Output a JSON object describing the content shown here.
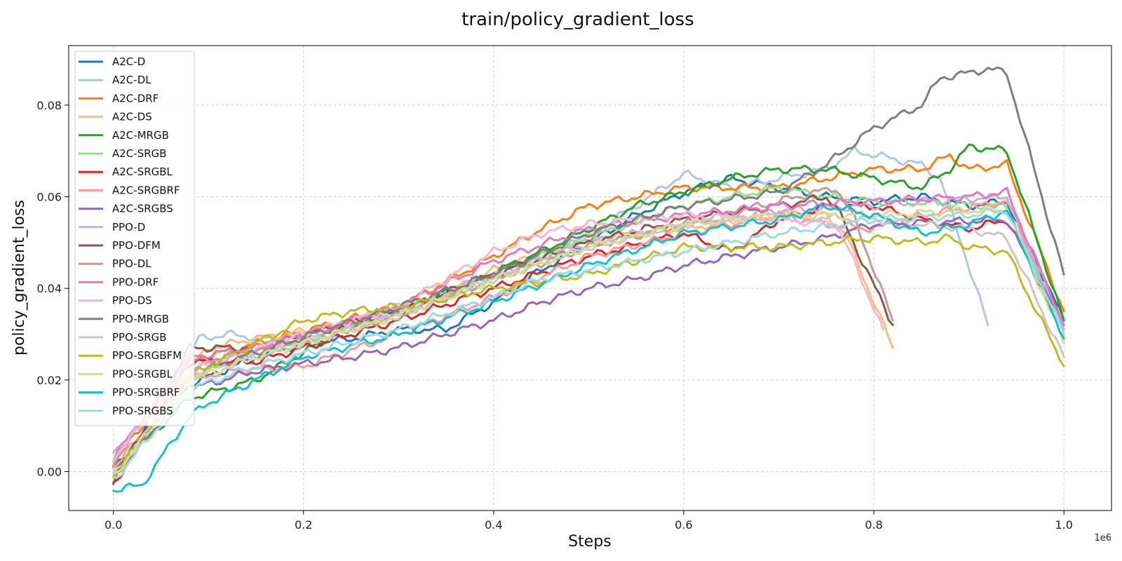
{
  "chart_data": {
    "type": "line",
    "title": "train/policy_gradient_loss",
    "xlabel": "Steps",
    "ylabel": "policy_gradient_loss",
    "x_offset_label": "1e6",
    "xlim": [
      -0.047,
      1.05
    ],
    "ylim": [
      -0.0085,
      0.093
    ],
    "x_ticks": [
      0.0,
      0.2,
      0.4,
      0.6,
      0.8,
      1.0
    ],
    "x_tick_labels": [
      "0.0",
      "0.2",
      "0.4",
      "0.6",
      "0.8",
      "1.0"
    ],
    "y_ticks": [
      0.0,
      0.02,
      0.04,
      0.06,
      0.08
    ],
    "y_tick_labels": [
      "0.00",
      "0.02",
      "0.04",
      "0.06",
      "0.08"
    ],
    "grid": true,
    "legend_position": "top-left",
    "series": [
      {
        "name": "A2C-D",
        "color": "#1f77b4",
        "points": [
          [
            0,
            0.001
          ],
          [
            0.08,
            0.019
          ],
          [
            0.15,
            0.025
          ],
          [
            0.2,
            0.028
          ],
          [
            0.25,
            0.029
          ],
          [
            0.3,
            0.031
          ],
          [
            0.35,
            0.031
          ],
          [
            0.4,
            0.037
          ],
          [
            0.45,
            0.044
          ],
          [
            0.5,
            0.05
          ],
          [
            0.55,
            0.056
          ],
          [
            0.6,
            0.061
          ],
          [
            0.65,
            0.064
          ],
          [
            0.7,
            0.062
          ],
          [
            0.75,
            0.06
          ],
          [
            0.8,
            0.059
          ],
          [
            0.85,
            0.06
          ],
          [
            0.9,
            0.058
          ],
          [
            0.94,
            0.059
          ],
          [
            1.0,
            0.033
          ]
        ]
      },
      {
        "name": "A2C-DL",
        "color": "#aec7e8",
        "points": [
          [
            0,
            0.002
          ],
          [
            0.09,
            0.029
          ],
          [
            0.12,
            0.03
          ],
          [
            0.2,
            0.028
          ],
          [
            0.3,
            0.035
          ],
          [
            0.4,
            0.042
          ],
          [
            0.5,
            0.052
          ],
          [
            0.55,
            0.058
          ],
          [
            0.6,
            0.065
          ],
          [
            0.65,
            0.062
          ],
          [
            0.7,
            0.064
          ],
          [
            0.75,
            0.066
          ],
          [
            0.78,
            0.07
          ],
          [
            0.85,
            0.067
          ],
          [
            0.87,
            0.064
          ],
          [
            0.92,
            0.032
          ]
        ]
      },
      {
        "name": "A2C-DRF",
        "color": "#ff7f0e",
        "points": [
          [
            0,
            0.002
          ],
          [
            0.08,
            0.024
          ],
          [
            0.15,
            0.028
          ],
          [
            0.3,
            0.036
          ],
          [
            0.4,
            0.047
          ],
          [
            0.45,
            0.053
          ],
          [
            0.5,
            0.058
          ],
          [
            0.6,
            0.062
          ],
          [
            0.7,
            0.062
          ],
          [
            0.8,
            0.066
          ],
          [
            0.85,
            0.066
          ],
          [
            0.88,
            0.069
          ],
          [
            0.9,
            0.066
          ],
          [
            0.94,
            0.067
          ],
          [
            1.0,
            0.035
          ]
        ]
      },
      {
        "name": "A2C-DS",
        "color": "#ffbb78",
        "points": [
          [
            0,
            0.003
          ],
          [
            0.1,
            0.027
          ],
          [
            0.15,
            0.029
          ],
          [
            0.3,
            0.034
          ],
          [
            0.4,
            0.044
          ],
          [
            0.5,
            0.051
          ],
          [
            0.6,
            0.053
          ],
          [
            0.7,
            0.056
          ],
          [
            0.75,
            0.056
          ],
          [
            0.77,
            0.052
          ],
          [
            0.82,
            0.027
          ]
        ]
      },
      {
        "name": "A2C-MRGB",
        "color": "#2ca02c",
        "points": [
          [
            0,
            0.0
          ],
          [
            0.08,
            0.016
          ],
          [
            0.15,
            0.02
          ],
          [
            0.25,
            0.032
          ],
          [
            0.3,
            0.036
          ],
          [
            0.35,
            0.039
          ],
          [
            0.45,
            0.048
          ],
          [
            0.55,
            0.058
          ],
          [
            0.6,
            0.061
          ],
          [
            0.65,
            0.064
          ],
          [
            0.7,
            0.066
          ],
          [
            0.75,
            0.066
          ],
          [
            0.8,
            0.064
          ],
          [
            0.85,
            0.062
          ],
          [
            0.88,
            0.066
          ],
          [
            0.9,
            0.071
          ],
          [
            0.94,
            0.07
          ],
          [
            1.0,
            0.033
          ]
        ]
      },
      {
        "name": "A2C-SRGB",
        "color": "#98df8a",
        "points": [
          [
            0,
            -0.001
          ],
          [
            0.08,
            0.02
          ],
          [
            0.15,
            0.026
          ],
          [
            0.3,
            0.034
          ],
          [
            0.4,
            0.043
          ],
          [
            0.5,
            0.051
          ],
          [
            0.6,
            0.058
          ],
          [
            0.65,
            0.06
          ],
          [
            0.7,
            0.062
          ],
          [
            0.75,
            0.06
          ],
          [
            0.8,
            0.059
          ],
          [
            0.94,
            0.058
          ],
          [
            1.0,
            0.03
          ]
        ]
      },
      {
        "name": "A2C-SRGBL",
        "color": "#d62728",
        "points": [
          [
            0,
            -0.003
          ],
          [
            0.08,
            0.024
          ],
          [
            0.15,
            0.024
          ],
          [
            0.3,
            0.033
          ],
          [
            0.4,
            0.04
          ],
          [
            0.5,
            0.047
          ],
          [
            0.6,
            0.052
          ],
          [
            0.65,
            0.048
          ],
          [
            0.7,
            0.055
          ],
          [
            0.75,
            0.058
          ],
          [
            0.8,
            0.058
          ],
          [
            0.85,
            0.055
          ],
          [
            0.9,
            0.053
          ],
          [
            0.94,
            0.055
          ],
          [
            1.0,
            0.031
          ]
        ]
      },
      {
        "name": "A2C-SRGBRF",
        "color": "#ff9896",
        "points": [
          [
            0,
            0.001
          ],
          [
            0.08,
            0.02
          ],
          [
            0.12,
            0.022
          ],
          [
            0.2,
            0.023
          ],
          [
            0.3,
            0.03
          ],
          [
            0.4,
            0.038
          ],
          [
            0.5,
            0.047
          ],
          [
            0.6,
            0.052
          ],
          [
            0.7,
            0.056
          ],
          [
            0.75,
            0.054
          ],
          [
            0.8,
            0.053
          ],
          [
            0.85,
            0.056
          ],
          [
            0.94,
            0.059
          ],
          [
            1.0,
            0.032
          ]
        ]
      },
      {
        "name": "A2C-SRGBS",
        "color": "#9467bd",
        "points": [
          [
            0,
            -0.001
          ],
          [
            0.08,
            0.018
          ],
          [
            0.15,
            0.022
          ],
          [
            0.25,
            0.025
          ],
          [
            0.3,
            0.027
          ],
          [
            0.35,
            0.03
          ],
          [
            0.4,
            0.033
          ],
          [
            0.45,
            0.037
          ],
          [
            0.5,
            0.04
          ],
          [
            0.55,
            0.042
          ],
          [
            0.6,
            0.045
          ],
          [
            0.65,
            0.047
          ],
          [
            0.7,
            0.049
          ],
          [
            0.75,
            0.051
          ],
          [
            0.8,
            0.054
          ],
          [
            0.94,
            0.055
          ],
          [
            1.0,
            0.032
          ]
        ]
      },
      {
        "name": "PPO-D",
        "color": "#c5b0d5",
        "points": [
          [
            0,
            0.004
          ],
          [
            0.08,
            0.022
          ],
          [
            0.15,
            0.027
          ],
          [
            0.3,
            0.035
          ],
          [
            0.4,
            0.043
          ],
          [
            0.5,
            0.05
          ],
          [
            0.6,
            0.054
          ],
          [
            0.7,
            0.057
          ],
          [
            0.8,
            0.058
          ],
          [
            0.85,
            0.059
          ],
          [
            0.94,
            0.06
          ],
          [
            1.0,
            0.031
          ]
        ]
      },
      {
        "name": "PPO-DFM",
        "color": "#8c564b",
        "points": [
          [
            0,
            -0.002
          ],
          [
            0.08,
            0.027
          ],
          [
            0.15,
            0.027
          ],
          [
            0.3,
            0.035
          ],
          [
            0.4,
            0.043
          ],
          [
            0.5,
            0.05
          ],
          [
            0.6,
            0.055
          ],
          [
            0.7,
            0.058
          ],
          [
            0.75,
            0.06
          ],
          [
            0.76,
            0.058
          ],
          [
            0.82,
            0.032
          ]
        ]
      },
      {
        "name": "PPO-DL",
        "color": "#c49c94",
        "points": [
          [
            0,
            0.002
          ],
          [
            0.08,
            0.024
          ],
          [
            0.15,
            0.026
          ],
          [
            0.3,
            0.034
          ],
          [
            0.4,
            0.042
          ],
          [
            0.5,
            0.049
          ],
          [
            0.6,
            0.054
          ],
          [
            0.7,
            0.059
          ],
          [
            0.76,
            0.062
          ],
          [
            0.78,
            0.055
          ],
          [
            0.82,
            0.033
          ]
        ]
      },
      {
        "name": "PPO-DRF",
        "color": "#e377c2",
        "points": [
          [
            0,
            0.003
          ],
          [
            0.08,
            0.025
          ],
          [
            0.15,
            0.027
          ],
          [
            0.3,
            0.036
          ],
          [
            0.4,
            0.046
          ],
          [
            0.5,
            0.053
          ],
          [
            0.6,
            0.056
          ],
          [
            0.7,
            0.058
          ],
          [
            0.8,
            0.059
          ],
          [
            0.9,
            0.06
          ],
          [
            0.94,
            0.061
          ],
          [
            1.0,
            0.032
          ]
        ]
      },
      {
        "name": "PPO-DS",
        "color": "#f7b6d2",
        "points": [
          [
            0,
            0.003
          ],
          [
            0.08,
            0.022
          ],
          [
            0.2,
            0.03
          ],
          [
            0.3,
            0.036
          ],
          [
            0.35,
            0.042
          ],
          [
            0.4,
            0.048
          ],
          [
            0.45,
            0.052
          ],
          [
            0.5,
            0.054
          ],
          [
            0.6,
            0.056
          ],
          [
            0.7,
            0.055
          ],
          [
            0.76,
            0.054
          ],
          [
            0.77,
            0.05
          ],
          [
            0.81,
            0.031
          ]
        ]
      },
      {
        "name": "PPO-MRGB",
        "color": "#7f7f7f",
        "points": [
          [
            0,
            -0.002
          ],
          [
            0.08,
            0.021
          ],
          [
            0.15,
            0.026
          ],
          [
            0.3,
            0.036
          ],
          [
            0.4,
            0.043
          ],
          [
            0.5,
            0.052
          ],
          [
            0.6,
            0.058
          ],
          [
            0.7,
            0.061
          ],
          [
            0.75,
            0.067
          ],
          [
            0.8,
            0.075
          ],
          [
            0.85,
            0.08
          ],
          [
            0.87,
            0.086
          ],
          [
            0.9,
            0.087
          ],
          [
            0.92,
            0.088
          ],
          [
            0.94,
            0.087
          ],
          [
            1.0,
            0.043
          ]
        ]
      },
      {
        "name": "PPO-SRGB",
        "color": "#c7c7c7",
        "points": [
          [
            0,
            -0.001
          ],
          [
            0.08,
            0.021
          ],
          [
            0.15,
            0.025
          ],
          [
            0.3,
            0.034
          ],
          [
            0.4,
            0.042
          ],
          [
            0.5,
            0.049
          ],
          [
            0.6,
            0.054
          ],
          [
            0.7,
            0.056
          ],
          [
            0.8,
            0.055
          ],
          [
            0.9,
            0.053
          ],
          [
            0.94,
            0.051
          ],
          [
            1.0,
            0.025
          ]
        ]
      },
      {
        "name": "PPO-SRGBFM",
        "color": "#bcbd22",
        "points": [
          [
            0,
            -0.001
          ],
          [
            0.08,
            0.021
          ],
          [
            0.15,
            0.028
          ],
          [
            0.2,
            0.033
          ],
          [
            0.25,
            0.035
          ],
          [
            0.3,
            0.036
          ],
          [
            0.4,
            0.04
          ],
          [
            0.5,
            0.043
          ],
          [
            0.6,
            0.049
          ],
          [
            0.7,
            0.049
          ],
          [
            0.75,
            0.05
          ],
          [
            0.8,
            0.051
          ],
          [
            0.85,
            0.05
          ],
          [
            0.88,
            0.051
          ],
          [
            0.9,
            0.049
          ],
          [
            0.94,
            0.048
          ],
          [
            1.0,
            0.023
          ]
        ]
      },
      {
        "name": "PPO-SRGBL",
        "color": "#dbdb8d",
        "points": [
          [
            0,
            -0.001
          ],
          [
            0.08,
            0.02
          ],
          [
            0.15,
            0.025
          ],
          [
            0.3,
            0.034
          ],
          [
            0.4,
            0.042
          ],
          [
            0.5,
            0.049
          ],
          [
            0.6,
            0.054
          ],
          [
            0.7,
            0.056
          ],
          [
            0.8,
            0.056
          ],
          [
            0.9,
            0.057
          ],
          [
            0.94,
            0.057
          ],
          [
            1.0,
            0.028
          ]
        ]
      },
      {
        "name": "PPO-SRGBRF",
        "color": "#17becf",
        "points": [
          [
            0,
            -0.004
          ],
          [
            0.03,
            -0.003
          ],
          [
            0.08,
            0.012
          ],
          [
            0.1,
            0.015
          ],
          [
            0.2,
            0.025
          ],
          [
            0.3,
            0.03
          ],
          [
            0.4,
            0.037
          ],
          [
            0.5,
            0.045
          ],
          [
            0.6,
            0.052
          ],
          [
            0.7,
            0.055
          ],
          [
            0.75,
            0.058
          ],
          [
            0.8,
            0.056
          ],
          [
            0.85,
            0.052
          ],
          [
            0.9,
            0.054
          ],
          [
            0.94,
            0.057
          ],
          [
            1.0,
            0.029
          ]
        ]
      },
      {
        "name": "PPO-SRGBS",
        "color": "#9edae5",
        "points": [
          [
            0,
            -0.002
          ],
          [
            0.08,
            0.018
          ],
          [
            0.15,
            0.023
          ],
          [
            0.3,
            0.031
          ],
          [
            0.4,
            0.038
          ],
          [
            0.45,
            0.042
          ],
          [
            0.5,
            0.044
          ],
          [
            0.6,
            0.048
          ],
          [
            0.7,
            0.052
          ],
          [
            0.8,
            0.055
          ],
          [
            0.9,
            0.056
          ],
          [
            0.94,
            0.057
          ],
          [
            1.0,
            0.03
          ]
        ]
      }
    ]
  }
}
